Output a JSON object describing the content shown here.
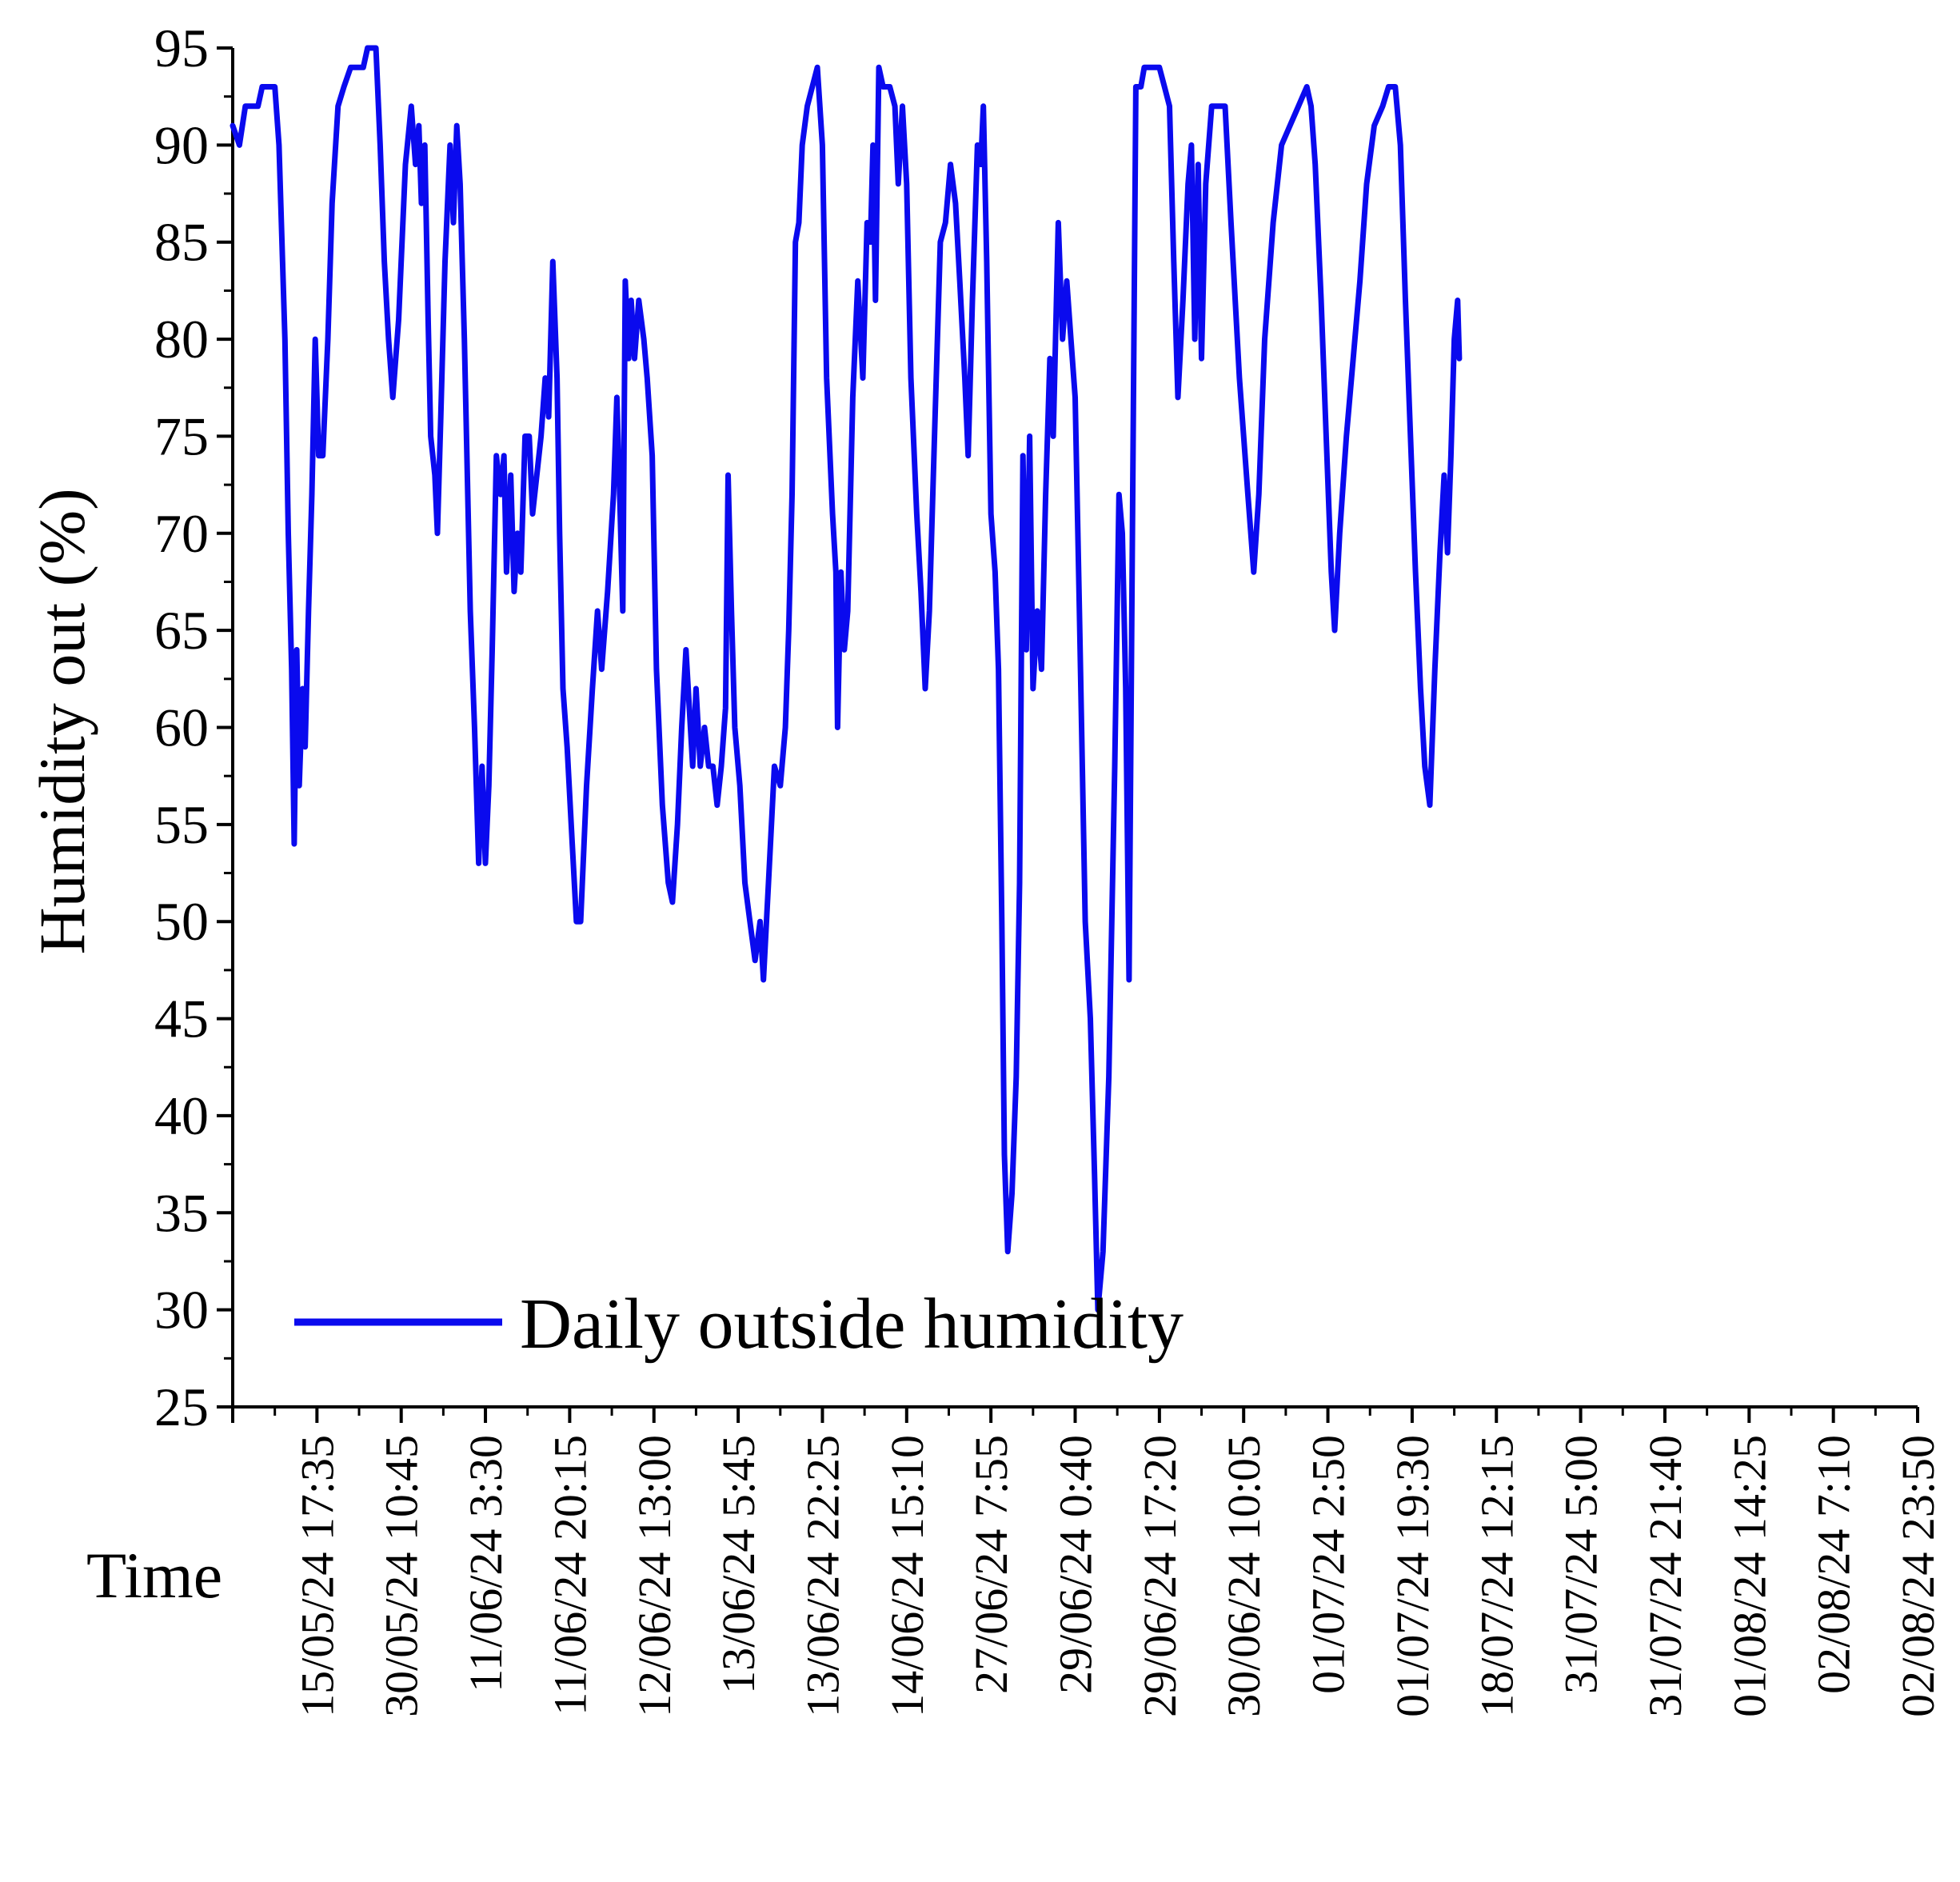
{
  "chart_data": {
    "type": "line",
    "title": "",
    "xlabel": "Time",
    "ylabel": "Humidity out (%)",
    "ylim": [
      25,
      95
    ],
    "y_ticks": [
      25,
      30,
      35,
      40,
      45,
      50,
      55,
      60,
      65,
      70,
      75,
      80,
      85,
      90,
      95
    ],
    "x_tick_labels": [
      "15/05/24 17:35",
      "30/05/24 10:45",
      "11/06/24 3:30",
      "11/06/24 20:15",
      "12/06/24 13:00",
      "13/06/24 5:45",
      "13/06/24 22:25",
      "14/06/24 15:10",
      "27/06/24 7:55",
      "29/06/24 0:40",
      "29/06/24 17:20",
      "30/06/24 10:05",
      "01/07/24 2:50",
      "01/07/24 19:30",
      "18/07/24 12:15",
      "31/07/24 5:00",
      "31/07/24 21:40",
      "01/08/24 14:25",
      "02/08/24 7:10",
      "02/08/24 23:50"
    ],
    "x_note": "x values are sample positions measured in tick intervals from the axis origin; tick k (1-based) marks the label at index k-1",
    "x_range": [
      0,
      20
    ],
    "grid": false,
    "legend_position": "bottom-left",
    "series": [
      {
        "name": "Daily outside humidity",
        "color": "#0a0aee",
        "points": [
          [
            0.0,
            91
          ],
          [
            0.08,
            90
          ],
          [
            0.15,
            92
          ],
          [
            0.3,
            92
          ],
          [
            0.35,
            93
          ],
          [
            0.5,
            93
          ],
          [
            0.55,
            90
          ],
          [
            0.62,
            80
          ],
          [
            0.66,
            70
          ],
          [
            0.7,
            63
          ],
          [
            0.73,
            54
          ],
          [
            0.76,
            64
          ],
          [
            0.79,
            57
          ],
          [
            0.83,
            62
          ],
          [
            0.86,
            59
          ],
          [
            0.9,
            66
          ],
          [
            0.94,
            72
          ],
          [
            0.98,
            80
          ],
          [
            1.02,
            74
          ],
          [
            1.07,
            74
          ],
          [
            1.13,
            80
          ],
          [
            1.18,
            87
          ],
          [
            1.25,
            92
          ],
          [
            1.32,
            93
          ],
          [
            1.4,
            94
          ],
          [
            1.55,
            94
          ],
          [
            1.6,
            95
          ],
          [
            1.7,
            95
          ],
          [
            1.75,
            90
          ],
          [
            1.8,
            84
          ],
          [
            1.85,
            80
          ],
          [
            1.9,
            77
          ],
          [
            1.97,
            81
          ],
          [
            2.05,
            89
          ],
          [
            2.12,
            92
          ],
          [
            2.17,
            89
          ],
          [
            2.21,
            91
          ],
          [
            2.24,
            87
          ],
          [
            2.28,
            90
          ],
          [
            2.32,
            81
          ],
          [
            2.35,
            75
          ],
          [
            2.4,
            73
          ],
          [
            2.43,
            70
          ],
          [
            2.47,
            76
          ],
          [
            2.52,
            84
          ],
          [
            2.58,
            90
          ],
          [
            2.62,
            86
          ],
          [
            2.66,
            91
          ],
          [
            2.7,
            88
          ],
          [
            2.75,
            80
          ],
          [
            2.82,
            66
          ],
          [
            2.87,
            60
          ],
          [
            2.92,
            53
          ],
          [
            2.96,
            58
          ],
          [
            3.0,
            53
          ],
          [
            3.04,
            57
          ],
          [
            3.08,
            64
          ],
          [
            3.13,
            74
          ],
          [
            3.18,
            72
          ],
          [
            3.22,
            74
          ],
          [
            3.25,
            68
          ],
          [
            3.3,
            73
          ],
          [
            3.34,
            67
          ],
          [
            3.38,
            70
          ],
          [
            3.42,
            68
          ],
          [
            3.47,
            75
          ],
          [
            3.52,
            75
          ],
          [
            3.56,
            71
          ],
          [
            3.61,
            73
          ],
          [
            3.66,
            75
          ],
          [
            3.71,
            78
          ],
          [
            3.75,
            76
          ],
          [
            3.8,
            84
          ],
          [
            3.85,
            78
          ],
          [
            3.88,
            70
          ],
          [
            3.92,
            62
          ],
          [
            3.97,
            59
          ],
          [
            4.03,
            54
          ],
          [
            4.08,
            50
          ],
          [
            4.13,
            50
          ],
          [
            4.2,
            57
          ],
          [
            4.27,
            62
          ],
          [
            4.33,
            66
          ],
          [
            4.38,
            63
          ],
          [
            4.45,
            67
          ],
          [
            4.52,
            72
          ],
          [
            4.56,
            77
          ],
          [
            4.6,
            71
          ],
          [
            4.63,
            66
          ],
          [
            4.66,
            83
          ],
          [
            4.7,
            79
          ],
          [
            4.73,
            82
          ],
          [
            4.77,
            79
          ],
          [
            4.82,
            82
          ],
          [
            4.88,
            80
          ],
          [
            4.92,
            78
          ],
          [
            4.98,
            74
          ],
          [
            5.03,
            63
          ],
          [
            5.1,
            56
          ],
          [
            5.17,
            52
          ],
          [
            5.22,
            51
          ],
          [
            5.28,
            55
          ],
          [
            5.33,
            60
          ],
          [
            5.38,
            64
          ],
          [
            5.42,
            61
          ],
          [
            5.46,
            58
          ],
          [
            5.5,
            62
          ],
          [
            5.55,
            58
          ],
          [
            5.6,
            60
          ],
          [
            5.65,
            58
          ],
          [
            5.7,
            58
          ],
          [
            5.75,
            56
          ],
          [
            5.8,
            58
          ],
          [
            5.85,
            61
          ],
          [
            5.88,
            73
          ],
          [
            5.92,
            66
          ],
          [
            5.96,
            60
          ],
          [
            6.02,
            57
          ],
          [
            6.08,
            52
          ],
          [
            6.14,
            50
          ],
          [
            6.2,
            48
          ],
          [
            6.26,
            50
          ],
          [
            6.3,
            47
          ],
          [
            6.36,
            52
          ],
          [
            6.43,
            58
          ],
          [
            6.5,
            57
          ],
          [
            6.56,
            60
          ],
          [
            6.6,
            65
          ],
          [
            6.64,
            72
          ],
          [
            6.68,
            85
          ],
          [
            6.72,
            86
          ],
          [
            6.76,
            90
          ],
          [
            6.82,
            92
          ],
          [
            6.88,
            93
          ],
          [
            6.94,
            94
          ],
          [
            7.0,
            90
          ],
          [
            7.05,
            78
          ],
          [
            7.12,
            71
          ],
          [
            7.16,
            68
          ],
          [
            7.18,
            60
          ],
          [
            7.22,
            68
          ],
          [
            7.26,
            64
          ],
          [
            7.3,
            66
          ],
          [
            7.36,
            77
          ],
          [
            7.42,
            83
          ],
          [
            7.48,
            78
          ],
          [
            7.53,
            86
          ],
          [
            7.57,
            85
          ],
          [
            7.6,
            90
          ],
          [
            7.63,
            82
          ],
          [
            7.67,
            94
          ],
          [
            7.72,
            93
          ],
          [
            7.8,
            93
          ],
          [
            7.86,
            92
          ],
          [
            7.9,
            88
          ],
          [
            7.95,
            92
          ],
          [
            8.0,
            88
          ],
          [
            8.05,
            78
          ],
          [
            8.12,
            71
          ],
          [
            8.17,
            67
          ],
          [
            8.22,
            62
          ],
          [
            8.27,
            66
          ],
          [
            8.33,
            75
          ],
          [
            8.4,
            85
          ],
          [
            8.46,
            86
          ],
          [
            8.52,
            89
          ],
          [
            8.58,
            87
          ],
          [
            8.63,
            83
          ],
          [
            8.69,
            78
          ],
          [
            8.73,
            74
          ],
          [
            8.78,
            82
          ],
          [
            8.84,
            90
          ],
          [
            8.88,
            89
          ],
          [
            8.91,
            92
          ],
          [
            8.95,
            84
          ],
          [
            9.0,
            71
          ],
          [
            9.05,
            68
          ],
          [
            9.09,
            63
          ],
          [
            9.13,
            50
          ],
          [
            9.16,
            38
          ],
          [
            9.2,
            33
          ],
          [
            9.25,
            36
          ],
          [
            9.3,
            42
          ],
          [
            9.34,
            52
          ],
          [
            9.38,
            74
          ],
          [
            9.42,
            64
          ],
          [
            9.46,
            75
          ],
          [
            9.5,
            62
          ],
          [
            9.55,
            66
          ],
          [
            9.6,
            63
          ],
          [
            9.65,
            72
          ],
          [
            9.7,
            79
          ],
          [
            9.74,
            75
          ],
          [
            9.8,
            86
          ],
          [
            9.85,
            80
          ],
          [
            9.9,
            83
          ],
          [
            9.95,
            80
          ],
          [
            10.0,
            77
          ],
          [
            10.05,
            66
          ],
          [
            10.12,
            50
          ],
          [
            10.18,
            45
          ],
          [
            10.23,
            37
          ],
          [
            10.27,
            30
          ],
          [
            10.33,
            33
          ],
          [
            10.4,
            42
          ],
          [
            10.47,
            58
          ],
          [
            10.52,
            72
          ],
          [
            10.56,
            70
          ],
          [
            10.6,
            62
          ],
          [
            10.64,
            47
          ],
          [
            10.68,
            70
          ],
          [
            10.72,
            93
          ],
          [
            10.78,
            93
          ],
          [
            10.82,
            94
          ],
          [
            10.9,
            94
          ],
          [
            11.0,
            94
          ],
          [
            11.06,
            93
          ],
          [
            11.12,
            92
          ],
          [
            11.17,
            84
          ],
          [
            11.22,
            77
          ],
          [
            11.28,
            82
          ],
          [
            11.34,
            88
          ],
          [
            11.38,
            90
          ],
          [
            11.42,
            80
          ],
          [
            11.46,
            89
          ],
          [
            11.5,
            79
          ],
          [
            11.55,
            88
          ],
          [
            11.62,
            92
          ],
          [
            11.7,
            92
          ],
          [
            11.78,
            92
          ],
          [
            11.85,
            86
          ],
          [
            11.95,
            78
          ],
          [
            12.05,
            72
          ],
          [
            12.12,
            68
          ],
          [
            12.18,
            72
          ],
          [
            12.25,
            80
          ],
          [
            12.35,
            86
          ],
          [
            12.45,
            90
          ],
          [
            12.55,
            91
          ],
          [
            12.65,
            92
          ],
          [
            12.75,
            93
          ],
          [
            12.8,
            92
          ],
          [
            12.85,
            89
          ],
          [
            12.92,
            82
          ],
          [
            12.98,
            75
          ],
          [
            13.04,
            68
          ],
          [
            13.08,
            65
          ],
          [
            13.14,
            70
          ],
          [
            13.22,
            75
          ],
          [
            13.3,
            79
          ],
          [
            13.38,
            83
          ],
          [
            13.46,
            88
          ],
          [
            13.55,
            91
          ],
          [
            13.65,
            92
          ],
          [
            13.72,
            93
          ],
          [
            13.8,
            93
          ],
          [
            13.86,
            90
          ],
          [
            13.92,
            82
          ],
          [
            13.98,
            75
          ],
          [
            14.04,
            68
          ],
          [
            14.1,
            62
          ],
          [
            14.15,
            58
          ],
          [
            14.21,
            56
          ],
          [
            14.27,
            63
          ],
          [
            14.33,
            69
          ],
          [
            14.38,
            73
          ],
          [
            14.42,
            69
          ],
          [
            14.46,
            74
          ],
          [
            14.5,
            80
          ],
          [
            14.54,
            82
          ],
          [
            14.56,
            79
          ]
        ]
      }
    ]
  }
}
